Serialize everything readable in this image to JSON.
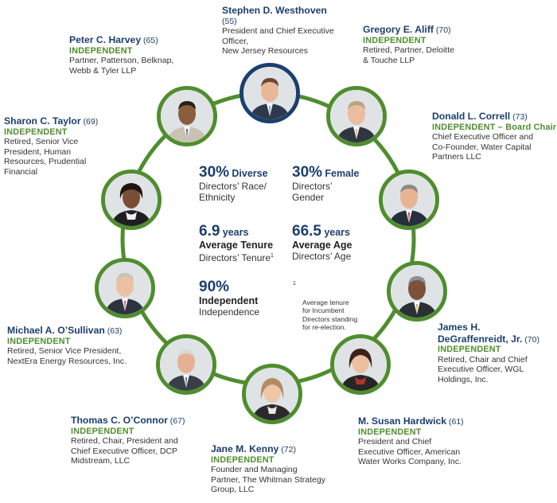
{
  "directors": [
    {
      "key": "westhoven",
      "name": "Stephen D. Westhoven",
      "age": "(55)",
      "independent": "",
      "role": "President and Chief Executive\nOfficer,\nNew Jersey Resources"
    },
    {
      "key": "aliff",
      "name": "Gregory E. Aliff",
      "age": "(70)",
      "independent": "INDEPENDENT",
      "role": "Retired, Partner, Deloitte\n& Touche LLP"
    },
    {
      "key": "correll",
      "name": "Donald L. Correll",
      "age": "(73)",
      "independent": "INDEPENDENT – Board Chair",
      "role": "Chief Executive Officer and\nCo-Founder, Water Capital\nPartners LLC"
    },
    {
      "key": "degraffenreidt",
      "name": "James H.\nDeGraffenreidt, Jr.",
      "age": "(70)",
      "independent": "INDEPENDENT",
      "role": "Retired, Chair and Chief\nExecutive Officer, WGL\nHoldings, Inc."
    },
    {
      "key": "hardwick",
      "name": "M. Susan Hardwick",
      "age": "(61)",
      "independent": "INDEPENDENT",
      "role": "President and Chief\nExecutive Officer, American\nWater Works Company, Inc."
    },
    {
      "key": "kenny",
      "name": "Jane M. Kenny",
      "age": "(72)",
      "independent": "INDEPENDENT",
      "role": "Founder and Managing\nPartner, The Whitman Strategy\nGroup, LLC"
    },
    {
      "key": "oconnor",
      "name": "Thomas C. O’Connor",
      "age": "(67)",
      "independent": "INDEPENDENT",
      "role": "Retired, Chair, President and\nChief Executive Officer, DCP\nMidstream, LLC"
    },
    {
      "key": "osullivan",
      "name": "Michael A. O’Sullivan",
      "age": "(63)",
      "independent": "INDEPENDENT",
      "role": "Retired, Senior Vice President,\nNextEra Energy Resources, Inc."
    },
    {
      "key": "taylor",
      "name": "Sharon C. Taylor",
      "age": "(69)",
      "independent": "INDEPENDENT",
      "role": "Retired, Senior Vice\nPresident, Human\nResources, Prudential\nFinancial"
    },
    {
      "key": "harvey",
      "name": "Peter C. Harvey",
      "age": "(65)",
      "independent": "INDEPENDENT",
      "role": "Partner, Patterson, Belknap,\nWebb & Tyler LLP"
    }
  ],
  "stats": {
    "diverse": {
      "value": "30%",
      "label": "Diverse",
      "sub": "Directors’ Race/\nEthnicity"
    },
    "female": {
      "value": "30%",
      "label": "Female",
      "sub": "Directors’\nGender"
    },
    "tenure": {
      "value": "6.9",
      "unit": "years",
      "label": "Average Tenure",
      "sub": "Directors’ Tenure",
      "mark": "1"
    },
    "age": {
      "value": "66.5",
      "unit": "years",
      "label": "Average Age",
      "sub": "Directors’ Age"
    },
    "independent": {
      "value": "90%",
      "label": "Independent",
      "sub": "Independence"
    }
  },
  "footnote": {
    "mark": "1",
    "text": "Average tenure\nfor Incumbent\nDirectors standing\nfor re-election."
  },
  "colors": {
    "navy": "#1b3f6e",
    "green": "#4f8d2e"
  }
}
